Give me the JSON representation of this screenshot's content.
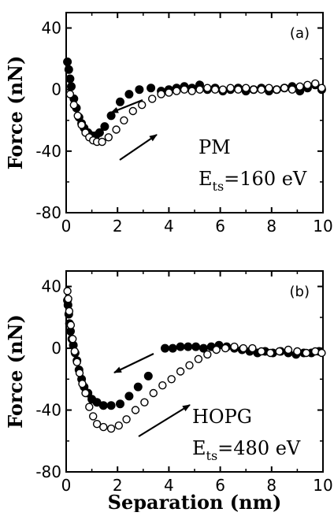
{
  "chart_data": [
    {
      "type": "scatter",
      "panel_tag": "(a)",
      "xlabel": "",
      "ylabel": "Force (nN)",
      "xlim": [
        0,
        10
      ],
      "ylim": [
        -80,
        50
      ],
      "xticks": [
        "0",
        "2",
        "4",
        "6",
        "8",
        "10"
      ],
      "yticks": [
        "40",
        "0",
        "-40",
        "-80"
      ],
      "annotation": {
        "material": "PM",
        "energy_symbol": "E",
        "energy_sub": "ts",
        "energy_value": "=160 eV"
      },
      "series": [
        {
          "marker": "filled-circle",
          "x": [
            0.05,
            0.1,
            0.15,
            0.2,
            0.3,
            0.4,
            0.5,
            0.6,
            0.7,
            0.85,
            1.0,
            1.15,
            1.3,
            1.5,
            1.75,
            2.1,
            2.45,
            2.85,
            3.3,
            3.7,
            4.0,
            4.3,
            4.6,
            4.9,
            5.2,
            5.5,
            5.8,
            6.1,
            6.4,
            6.7,
            7.0,
            7.3,
            7.6,
            7.9,
            8.2,
            8.5,
            8.8,
            9.1,
            9.4,
            9.7,
            9.95
          ],
          "y": [
            18,
            13,
            7,
            2,
            -6,
            -12,
            -18,
            -22,
            -25,
            -28,
            -30,
            -30,
            -28,
            -24,
            -17,
            -8,
            -3,
            0,
            1,
            -1,
            0,
            1,
            2,
            1,
            3,
            0,
            1,
            -1,
            0,
            1,
            -1,
            0,
            1,
            -1,
            0,
            1,
            2,
            -1,
            1,
            3,
            0
          ]
        },
        {
          "marker": "open-circle",
          "x": [
            0.15,
            0.3,
            0.45,
            0.6,
            0.75,
            0.9,
            1.05,
            1.2,
            1.4,
            1.65,
            1.95,
            2.25,
            2.6,
            2.95,
            3.35,
            3.7,
            4.0,
            4.3,
            4.6,
            4.9,
            5.2,
            5.5,
            5.8,
            6.1,
            6.4,
            6.7,
            7.0,
            7.3,
            7.6,
            7.9,
            8.2,
            8.5,
            8.8,
            9.1,
            9.4,
            9.7,
            9.95
          ],
          "y": [
            -3,
            -10,
            -17,
            -23,
            -28,
            -31,
            -33,
            -34,
            -34,
            -31,
            -26,
            -20,
            -14,
            -10,
            -6,
            -3,
            -2,
            -1,
            0,
            -1,
            0,
            1,
            0,
            0,
            1,
            0,
            1,
            0,
            0,
            1,
            0,
            1,
            0,
            2,
            3,
            4,
            1
          ]
        }
      ]
    },
    {
      "type": "scatter",
      "panel_tag": "(b)",
      "xlabel": "Separation (nm)",
      "ylabel": "Force (nN)",
      "xlim": [
        0,
        10
      ],
      "ylim": [
        -80,
        50
      ],
      "xticks": [
        "0",
        "2",
        "4",
        "6",
        "8",
        "10"
      ],
      "yticks": [
        "40",
        "0",
        "-40",
        "-80"
      ],
      "annotation": {
        "material": "HOPG",
        "energy_symbol": "E",
        "energy_sub": "ts",
        "energy_value": "=480 eV"
      },
      "series": [
        {
          "marker": "filled-circle",
          "x": [
            0.05,
            0.07,
            0.1,
            0.13,
            0.17,
            0.22,
            0.28,
            0.35,
            0.42,
            0.5,
            0.6,
            0.7,
            0.85,
            1.0,
            1.2,
            1.45,
            1.75,
            2.1,
            2.45,
            2.8,
            3.2,
            3.85,
            4.15,
            4.45,
            4.75,
            5.05,
            5.35,
            5.65,
            5.95,
            6.25,
            6.55,
            6.85,
            7.15,
            7.45,
            7.75,
            8.05,
            8.35,
            8.65,
            8.95,
            9.25,
            9.55,
            9.85
          ],
          "y": [
            31,
            28,
            22,
            16,
            11,
            6,
            2,
            -3,
            -8,
            -14,
            -20,
            -25,
            -29,
            -33,
            -35,
            -37,
            -37,
            -36,
            -31,
            -25,
            -18,
            0,
            0,
            1,
            1,
            1,
            0,
            1,
            2,
            1,
            0,
            -1,
            -2,
            -3,
            -2,
            -3,
            -2,
            -3,
            -4,
            -3,
            -3,
            -2
          ]
        },
        {
          "marker": "open-circle",
          "x": [
            0.05,
            0.08,
            0.12,
            0.18,
            0.25,
            0.33,
            0.42,
            0.52,
            0.63,
            0.75,
            0.9,
            1.05,
            1.2,
            1.45,
            1.75,
            2.05,
            2.35,
            2.7,
            3.05,
            3.4,
            3.75,
            4.1,
            4.45,
            4.8,
            5.15,
            5.5,
            5.85,
            6.2,
            6.55,
            6.9,
            7.25,
            7.6,
            7.95,
            8.3,
            8.65,
            9.0,
            9.35,
            9.7,
            9.95
          ],
          "y": [
            37,
            32,
            24,
            15,
            6,
            -2,
            -9,
            -16,
            -23,
            -29,
            -38,
            -44,
            -49,
            -51,
            -52,
            -50,
            -46,
            -40,
            -35,
            -29,
            -24,
            -20,
            -15,
            -11,
            -7,
            -4,
            -1,
            0,
            1,
            0,
            0,
            -2,
            -3,
            -2,
            -1,
            -2,
            -3,
            -2,
            -3
          ]
        }
      ]
    }
  ]
}
